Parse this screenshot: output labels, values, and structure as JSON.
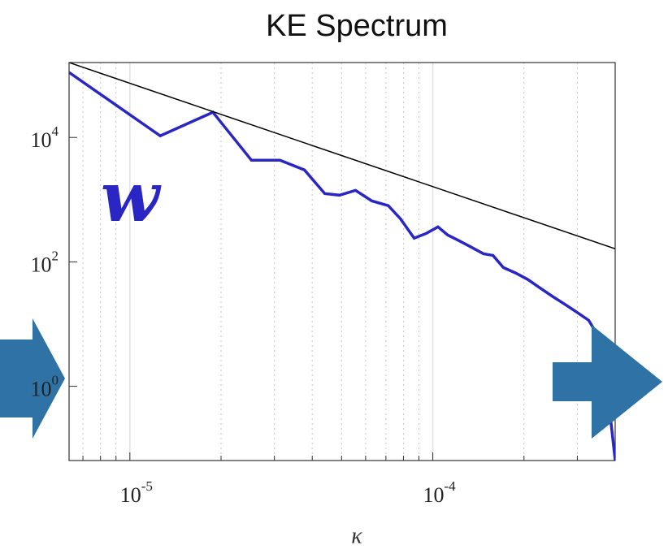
{
  "chart_data": {
    "type": "line",
    "title": "KE Spectrum",
    "xlabel": "κ",
    "annotation": "w",
    "xscale": "log",
    "yscale": "log",
    "grid": true,
    "xlim": [
      6.3e-06,
      0.0004
    ],
    "ylim": [
      0.064,
      160000
    ],
    "xticks": [
      {
        "value": 1e-05,
        "label": "10",
        "exponent": "-5"
      },
      {
        "value": 0.0001,
        "label": "10",
        "exponent": "-4"
      }
    ],
    "xminorticks": [
      7e-06,
      8e-06,
      9e-06,
      2e-05,
      3e-05,
      4e-05,
      5e-05,
      6e-05,
      7e-05,
      8e-05,
      9e-05,
      0.0002,
      0.0003
    ],
    "yticks": [
      {
        "value": 1,
        "label": "10",
        "exponent": "0"
      },
      {
        "value": 100,
        "label": "10",
        "exponent": "2"
      },
      {
        "value": 10000,
        "label": "10",
        "exponent": "4"
      }
    ],
    "series": [
      {
        "color": "#2a26c4",
        "x": [
          6.3e-06,
          1.26e-05,
          1.88e-05,
          2.52e-05,
          3.13e-05,
          3.77e-05,
          4.4e-05,
          4.92e-05,
          5.56e-05,
          6.29e-05,
          7.13e-05,
          7.82e-05,
          8.68e-05,
          9.52e-05,
          0.000104,
          0.000112,
          0.000122,
          0.000134,
          0.000147,
          0.000158,
          0.000171,
          0.000188,
          0.000206,
          0.000226,
          0.000248,
          0.000272,
          0.000299,
          0.000327,
          0.000359,
          0.000382,
          0.0004
        ],
        "values": [
          111000,
          10600,
          25400,
          4300,
          4300,
          3000,
          1250,
          1180,
          1410,
          955,
          800,
          493,
          240,
          287,
          365,
          270,
          219,
          172,
          135,
          127,
          81,
          66,
          52,
          38,
          28,
          21,
          15.5,
          11.5,
          5.4,
          0.49,
          0.065
        ]
      },
      {
        "color": "#000000",
        "x": [
          6.3e-06,
          0.0004
        ],
        "values": [
          160000,
          162
        ]
      }
    ]
  }
}
